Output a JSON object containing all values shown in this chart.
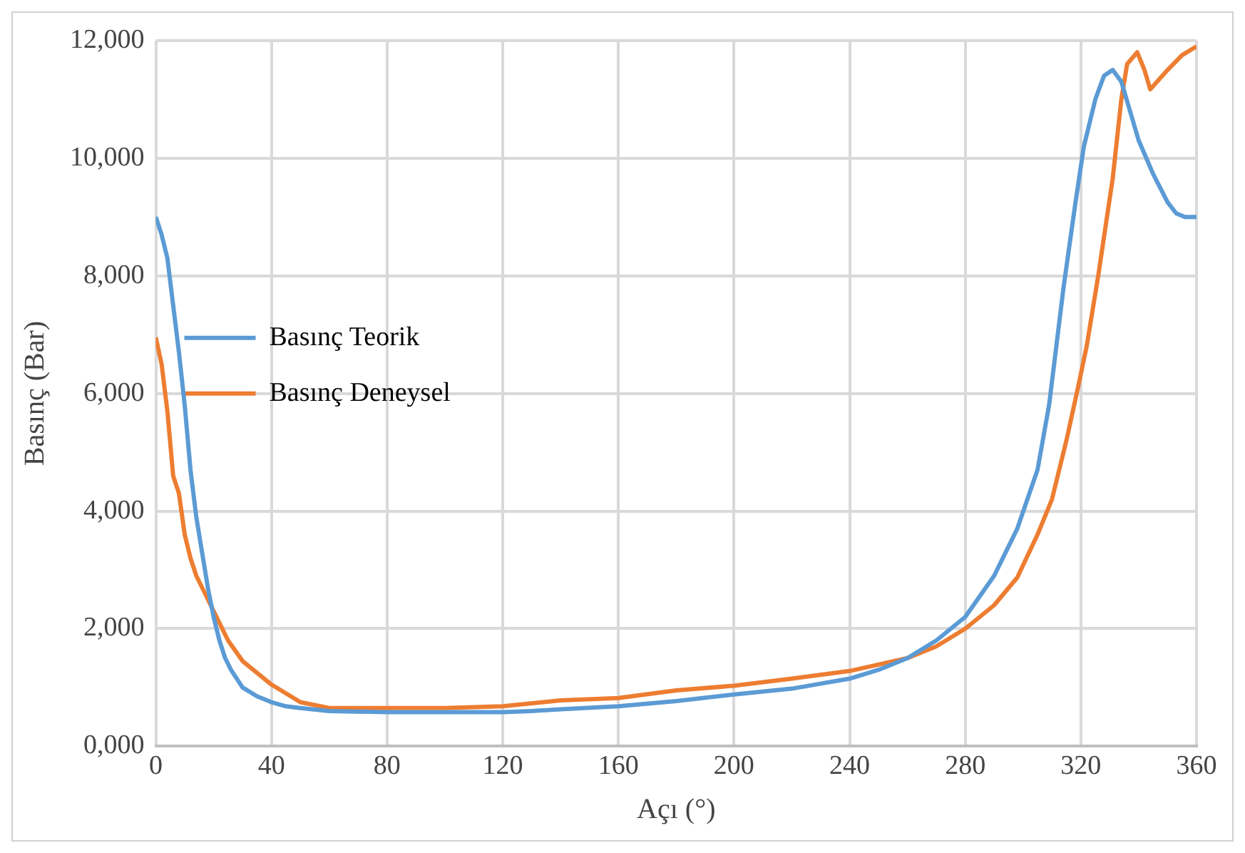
{
  "chart_data": {
    "type": "line",
    "xlabel": "Açı (°)",
    "ylabel": "Basınç (Bar)",
    "xlim": [
      0,
      360
    ],
    "xticks": [
      0,
      40,
      80,
      120,
      160,
      200,
      240,
      280,
      320,
      360
    ],
    "ylim": [
      0,
      12000
    ],
    "yticks": [
      {
        "value": 0,
        "label": "0,000"
      },
      {
        "value": 2000,
        "label": "2,000"
      },
      {
        "value": 4000,
        "label": "4,000"
      },
      {
        "value": 6000,
        "label": "6,000"
      },
      {
        "value": 8000,
        "label": "8,000"
      },
      {
        "value": 10000,
        "label": "10,000"
      },
      {
        "value": 12000,
        "label": "12,000"
      }
    ],
    "grid": true,
    "legend": "top",
    "marker": "none",
    "line_style": "solid",
    "series": [
      {
        "name": "Basınç Teorik",
        "color": "#5b9bd5",
        "x": [
          0,
          2,
          4,
          6,
          8,
          10,
          12,
          14,
          16,
          18,
          20,
          22,
          24,
          26,
          30,
          35,
          40,
          45,
          50,
          60,
          80,
          100,
          120,
          130,
          140,
          160,
          180,
          200,
          220,
          240,
          250,
          260,
          270,
          280,
          290,
          298,
          305,
          309,
          314,
          318,
          321,
          325,
          328,
          331,
          334,
          337,
          340,
          345,
          350,
          353,
          356,
          360
        ],
        "values": [
          9000,
          8700,
          8300,
          7500,
          6700,
          5800,
          4700,
          3900,
          3300,
          2700,
          2200,
          1800,
          1500,
          1300,
          1000,
          850,
          750,
          680,
          650,
          600,
          580,
          580,
          580,
          600,
          630,
          680,
          770,
          880,
          980,
          1150,
          1300,
          1500,
          1800,
          2200,
          2900,
          3700,
          4700,
          5800,
          7800,
          9200,
          10190,
          11000,
          11400,
          11500,
          11300,
          10800,
          10300,
          9730,
          9250,
          9060,
          9000,
          9000
        ]
      },
      {
        "name": "Basınç Deneysel",
        "color": "#ed7d31",
        "x": [
          0,
          2,
          4,
          6,
          8,
          10,
          12,
          14,
          16,
          20,
          25,
          30,
          40,
          50,
          60,
          80,
          100,
          120,
          140,
          160,
          180,
          200,
          220,
          240,
          260,
          270,
          280,
          290,
          298,
          305,
          310,
          315,
          319,
          322,
          326,
          331,
          334,
          336,
          339.5,
          342,
          344,
          350,
          355,
          360
        ],
        "values": [
          6950,
          6500,
          5700,
          4600,
          4300,
          3600,
          3200,
          2900,
          2700,
          2300,
          1800,
          1450,
          1050,
          750,
          650,
          650,
          650,
          680,
          780,
          820,
          950,
          1030,
          1150,
          1280,
          1500,
          1700,
          2000,
          2400,
          2870,
          3600,
          4200,
          5200,
          6100,
          6800,
          8000,
          9650,
          11000,
          11600,
          11800,
          11500,
          11170,
          11500,
          11750,
          11900
        ]
      }
    ]
  }
}
